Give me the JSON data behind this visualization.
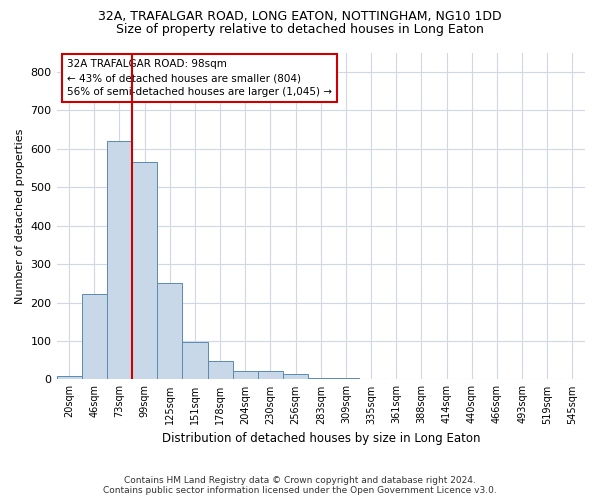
{
  "title_line1": "32A, TRAFALGAR ROAD, LONG EATON, NOTTINGHAM, NG10 1DD",
  "title_line2": "Size of property relative to detached houses in Long Eaton",
  "xlabel": "Distribution of detached houses by size in Long Eaton",
  "ylabel": "Number of detached properties",
  "bin_labels": [
    "20sqm",
    "46sqm",
    "73sqm",
    "99sqm",
    "125sqm",
    "151sqm",
    "178sqm",
    "204sqm",
    "230sqm",
    "256sqm",
    "283sqm",
    "309sqm",
    "335sqm",
    "361sqm",
    "388sqm",
    "414sqm",
    "440sqm",
    "466sqm",
    "493sqm",
    "519sqm",
    "545sqm"
  ],
  "bar_values": [
    10,
    223,
    619,
    566,
    250,
    97,
    48,
    22,
    22,
    13,
    5,
    4,
    2,
    1,
    1,
    0,
    0,
    0,
    0,
    0,
    0
  ],
  "bar_color": "#c8d8e8",
  "bar_edge_color": "#5a8ab0",
  "grid_color": "#d0d8e8",
  "property_label": "32A TRAFALGAR ROAD: 98sqm",
  "annotation_line1": "← 43% of detached houses are smaller (804)",
  "annotation_line2": "56% of semi-detached houses are larger (1,045) →",
  "vline_color": "#cc0000",
  "annotation_box_facecolor": "#ffffff",
  "annotation_box_edgecolor": "#cc0000",
  "footer_line1": "Contains HM Land Registry data © Crown copyright and database right 2024.",
  "footer_line2": "Contains public sector information licensed under the Open Government Licence v3.0.",
  "ylim": [
    0,
    850
  ],
  "yticks": [
    0,
    100,
    200,
    300,
    400,
    500,
    600,
    700,
    800
  ],
  "background_color": "#ffffff",
  "title1_fontsize": 9,
  "title2_fontsize": 9
}
